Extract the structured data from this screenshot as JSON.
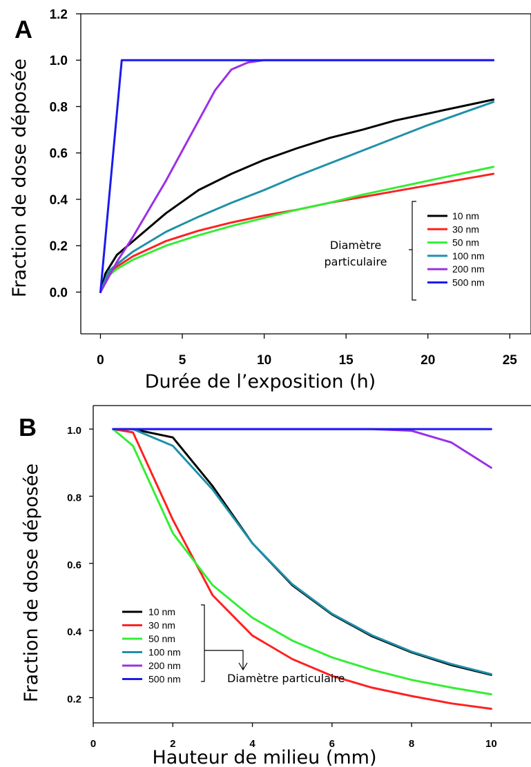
{
  "chart_data": [
    {
      "panel": "A",
      "type": "line",
      "xlabel": "Durée de l’exposition (h)",
      "ylabel": "Fraction de dose déposée",
      "xlim": [
        -1.2,
        26
      ],
      "ylim": [
        -0.18,
        1.2
      ],
      "xticks": [
        0,
        5,
        10,
        15,
        20,
        25
      ],
      "yticks": [
        0.0,
        0.2,
        0.4,
        0.6,
        0.8,
        1.0,
        1.2
      ],
      "ytick_labels": [
        "0.0",
        "0.2",
        "0.4",
        "0.6",
        "0.8",
        "1.0",
        "1.2"
      ],
      "legend_title": [
        "Diamètre",
        "particulaire"
      ],
      "legend_position": "bottom-right",
      "series": [
        {
          "name": "10 nm",
          "color": "#000000",
          "x": [
            0,
            0.3,
            1,
            2,
            4,
            6,
            8,
            10,
            12,
            14,
            16,
            18,
            20,
            22,
            24
          ],
          "y": [
            0,
            0.08,
            0.16,
            0.22,
            0.34,
            0.44,
            0.51,
            0.57,
            0.62,
            0.665,
            0.7,
            0.74,
            0.77,
            0.8,
            0.83
          ]
        },
        {
          "name": "30 nm",
          "color": "#ff2020",
          "x": [
            0,
            0.5,
            1,
            2,
            4,
            6,
            8,
            10,
            12,
            14,
            16,
            18,
            20,
            22,
            24
          ],
          "y": [
            0,
            0.08,
            0.11,
            0.155,
            0.22,
            0.265,
            0.3,
            0.33,
            0.355,
            0.385,
            0.41,
            0.435,
            0.46,
            0.485,
            0.51
          ]
        },
        {
          "name": "50 nm",
          "color": "#33ee33",
          "x": [
            0,
            0.5,
            1,
            2,
            4,
            6,
            8,
            10,
            12,
            14,
            16,
            18,
            20,
            22,
            24
          ],
          "y": [
            0,
            0.07,
            0.1,
            0.14,
            0.2,
            0.245,
            0.285,
            0.32,
            0.355,
            0.385,
            0.42,
            0.45,
            0.48,
            0.51,
            0.54
          ]
        },
        {
          "name": "100 nm",
          "color": "#1e90a8",
          "x": [
            0,
            0.5,
            1,
            2,
            4,
            6,
            8,
            10,
            12,
            14,
            16,
            18,
            20,
            22,
            24
          ],
          "y": [
            0,
            0.09,
            0.12,
            0.175,
            0.26,
            0.325,
            0.385,
            0.44,
            0.5,
            0.555,
            0.61,
            0.665,
            0.72,
            0.77,
            0.82
          ]
        },
        {
          "name": "200 nm",
          "color": "#9a30e8",
          "x": [
            0,
            1,
            2,
            3,
            4,
            5,
            6,
            7,
            8,
            9,
            10,
            11,
            24
          ],
          "y": [
            0,
            0.13,
            0.24,
            0.36,
            0.48,
            0.61,
            0.74,
            0.87,
            0.96,
            0.99,
            1.0,
            1.0,
            1.0
          ]
        },
        {
          "name": "500 nm",
          "color": "#1a1aee",
          "x": [
            0,
            1.3,
            1.4,
            24
          ],
          "y": [
            0,
            1.0,
            1.0,
            1.0
          ]
        }
      ]
    },
    {
      "panel": "B",
      "type": "line",
      "xlabel": "Hauteur de milieu (mm)",
      "ylabel": "Fraction de dose déposée",
      "xlim": [
        0,
        11
      ],
      "ylim": [
        0.125,
        1.07
      ],
      "xticks": [
        0,
        2,
        4,
        6,
        8,
        10
      ],
      "yticks": [
        0.2,
        0.4,
        0.6,
        0.8,
        1.0
      ],
      "ytick_labels": [
        "0.2",
        "0.4",
        "0.6",
        "0.8",
        "1.0"
      ],
      "legend_title": [
        "Diamètre particulaire"
      ],
      "legend_position": "bottom-left",
      "series": [
        {
          "name": "10 nm",
          "color": "#000000",
          "x": [
            0.5,
            1,
            2,
            3,
            4,
            5,
            6,
            7,
            8,
            9,
            10
          ],
          "y": [
            1.0,
            1.0,
            0.975,
            0.83,
            0.66,
            0.535,
            0.448,
            0.383,
            0.335,
            0.297,
            0.268
          ]
        },
        {
          "name": "30 nm",
          "color": "#ff2020",
          "x": [
            0.5,
            1,
            2,
            3,
            4,
            5,
            6,
            7,
            8,
            9,
            10
          ],
          "y": [
            1.0,
            0.99,
            0.73,
            0.505,
            0.385,
            0.315,
            0.265,
            0.23,
            0.205,
            0.183,
            0.167
          ]
        },
        {
          "name": "50 nm",
          "color": "#33ee33",
          "x": [
            0.5,
            1,
            2,
            3,
            4,
            5,
            6,
            7,
            8,
            9,
            10
          ],
          "y": [
            1.0,
            0.95,
            0.69,
            0.535,
            0.438,
            0.37,
            0.32,
            0.283,
            0.253,
            0.23,
            0.21
          ]
        },
        {
          "name": "100 nm",
          "color": "#1e90a8",
          "x": [
            0.5,
            1,
            2,
            3,
            4,
            5,
            6,
            7,
            8,
            9,
            10
          ],
          "y": [
            1.0,
            1.0,
            0.95,
            0.82,
            0.66,
            0.538,
            0.45,
            0.386,
            0.337,
            0.3,
            0.27
          ]
        },
        {
          "name": "200 nm",
          "color": "#9a30e8",
          "x": [
            0.5,
            1,
            2,
            3,
            4,
            5,
            6,
            7,
            8,
            9,
            10
          ],
          "y": [
            1.0,
            1.0,
            1.0,
            1.0,
            1.0,
            1.0,
            1.0,
            1.0,
            0.995,
            0.96,
            0.885
          ]
        },
        {
          "name": "500 nm",
          "color": "#1a1aee",
          "x": [
            0.5,
            10
          ],
          "y": [
            1.0,
            1.0
          ]
        }
      ]
    }
  ]
}
